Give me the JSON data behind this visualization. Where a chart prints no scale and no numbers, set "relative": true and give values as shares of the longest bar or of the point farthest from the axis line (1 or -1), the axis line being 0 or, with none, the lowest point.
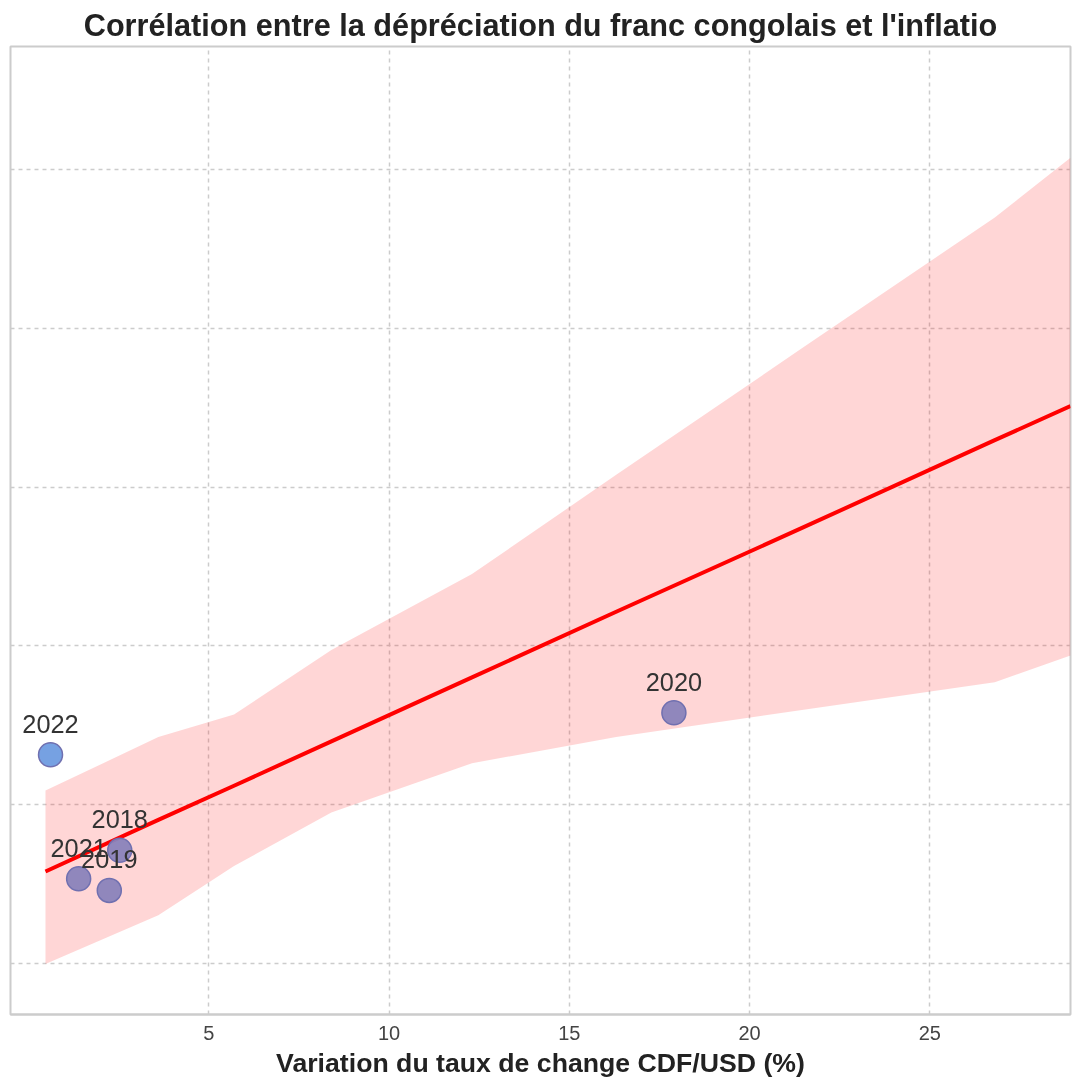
{
  "chart_data": {
    "type": "line",
    "title": "Corrélation entre la dépréciation du franc congolais et l'inflatio",
    "xlabel": "Variation du taux de change CDF/USD (%)",
    "relative": true,
    "xlim": [
      -0.5,
      28.9
    ],
    "xticks": [
      5,
      10,
      15,
      20,
      25
    ],
    "grid": true,
    "series": [
      {
        "type": "scatter",
        "marker": "circle",
        "x": [
          0.61,
          2.53,
          1.39,
          2.24,
          17.9
        ],
        "values": [
          0.427,
          0.27,
          0.223,
          0.204,
          0.496
        ],
        "colors": [
          "#6f9ce0",
          "#8a83bb",
          "#8a83bb",
          "#8a83bb",
          "#8a83bb"
        ]
      },
      {
        "marker": "none",
        "color": "#ff0000",
        "x": [
          0.47,
          3.6,
          5.7,
          8.4,
          12.3,
          16.3,
          21.5,
          26.8,
          28.9
        ],
        "values": [
          0.235,
          0.32,
          0.376,
          0.449,
          0.554,
          0.662,
          0.801,
          0.944,
          1.0
        ],
        "lower": [
          0.083,
          0.163,
          0.244,
          0.332,
          0.413,
          0.456,
          0.501,
          0.546,
          0.59
        ],
        "upper": [
          0.368,
          0.456,
          0.493,
          0.599,
          0.724,
          0.887,
          1.097,
          1.31,
          1.408
        ]
      }
    ],
    "annotations": [
      {
        "text": "2022",
        "x": 0.61,
        "y": 0.427
      },
      {
        "text": "2018",
        "x": 2.53,
        "y": 0.27
      },
      {
        "text": "2021",
        "x": 1.39,
        "y": 0.223
      },
      {
        "text": "2019",
        "x": 2.24,
        "y": 0.204
      },
      {
        "text": "2020",
        "x": 17.9,
        "y": 0.496
      }
    ]
  }
}
